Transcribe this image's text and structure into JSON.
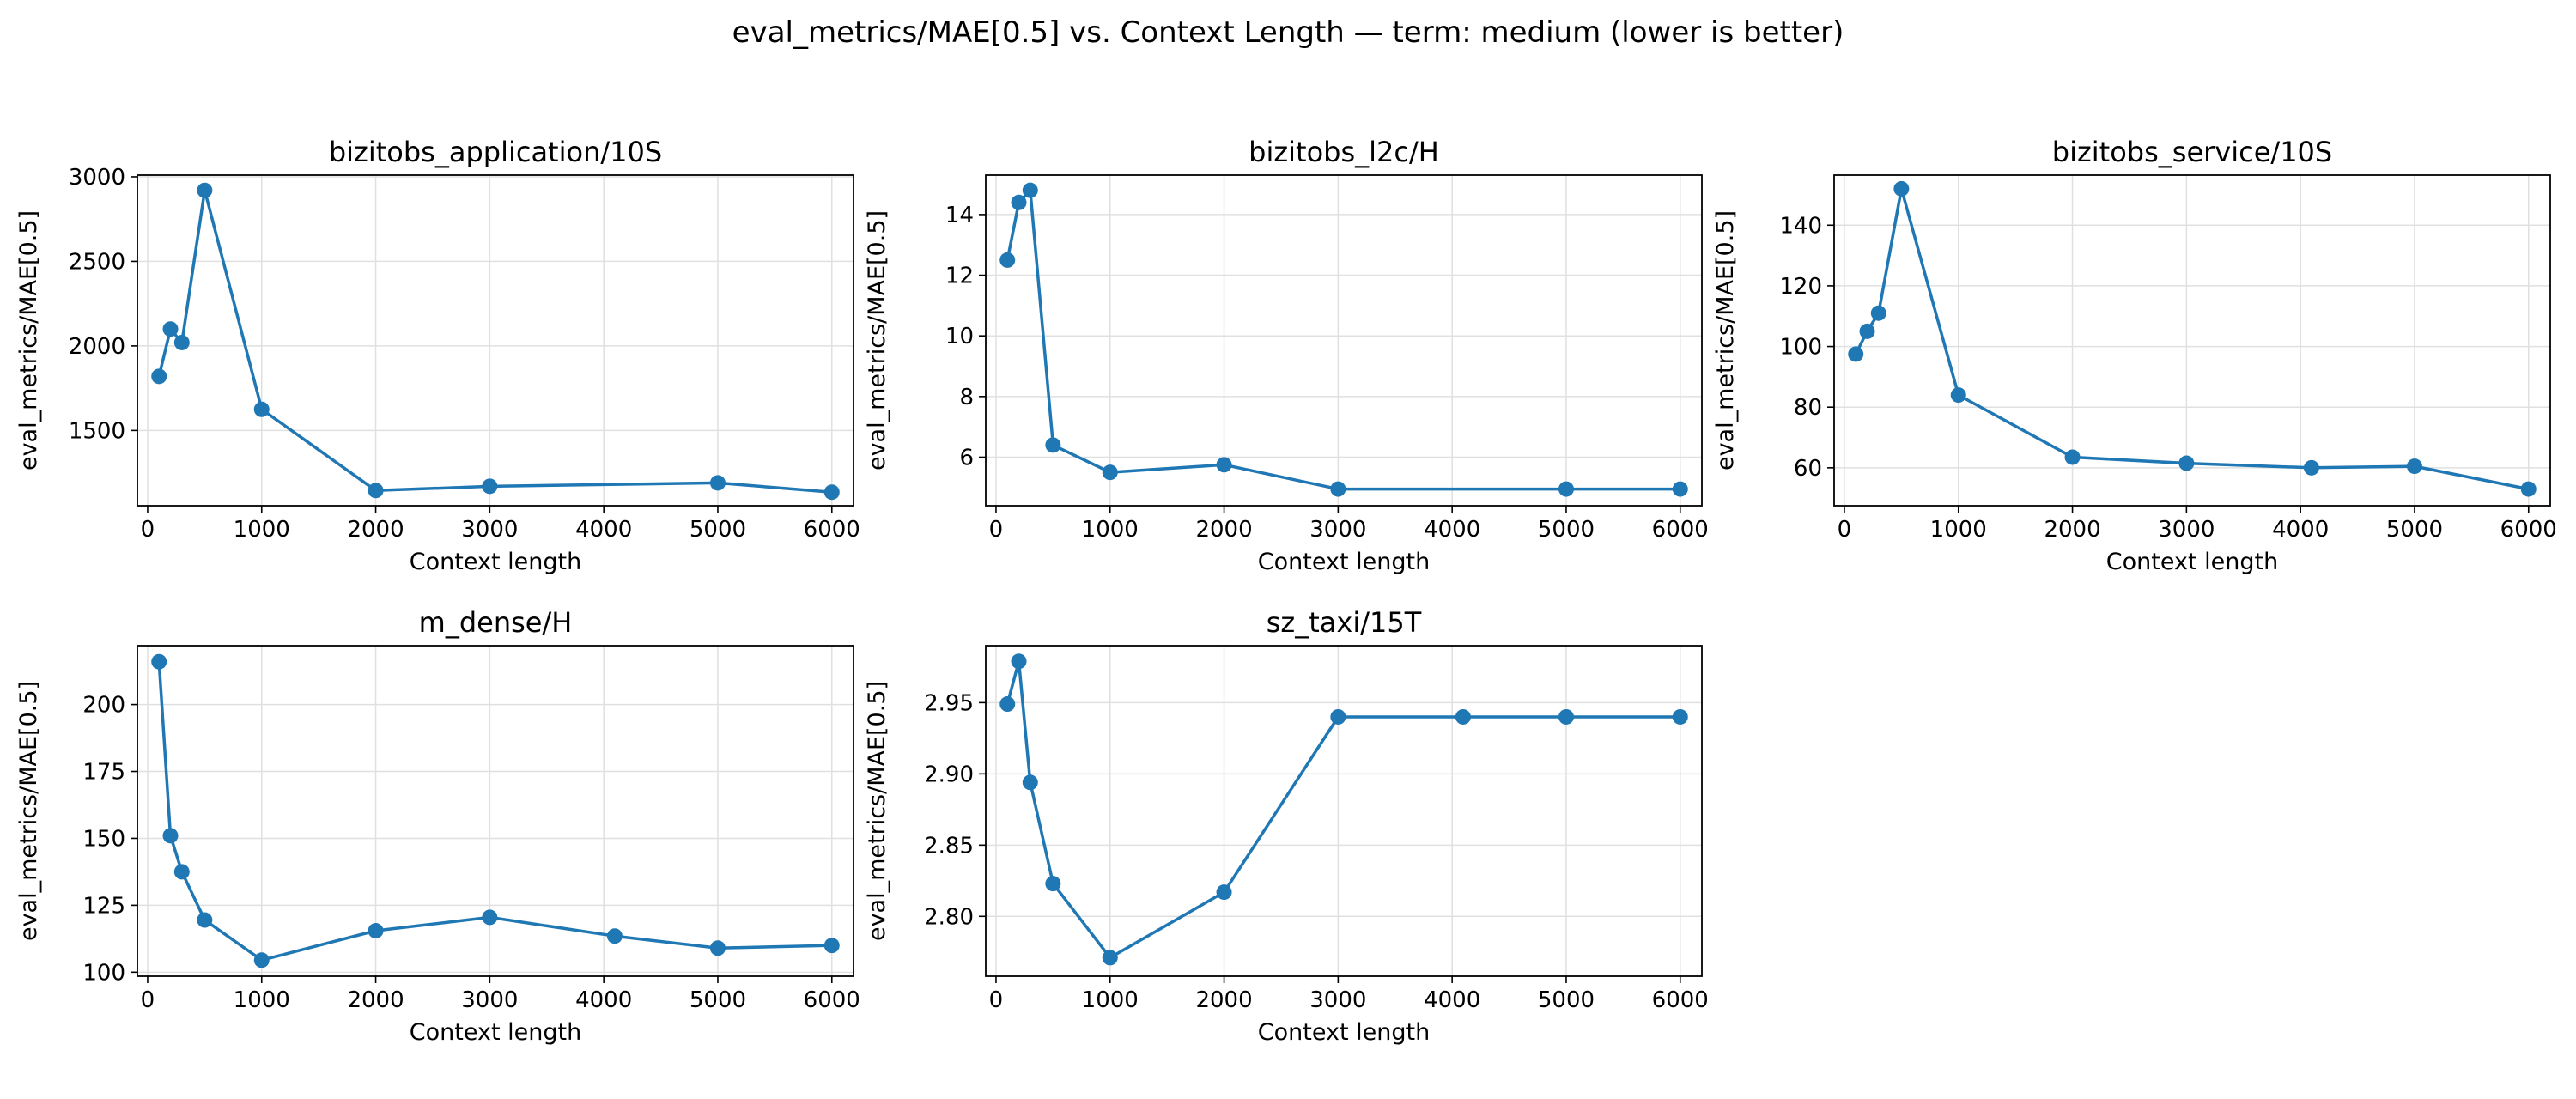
{
  "figure": {
    "suptitle": "eval_metrics/MAE[0.5] vs. Context Length — term: medium (lower is better)"
  },
  "colors": {
    "series": "#1f77b4",
    "grid": "#e0e0e0",
    "axis": "#000000"
  },
  "chart_data": [
    {
      "type": "line",
      "title": "bizitobs_application/10S",
      "xlabel": "Context length",
      "ylabel": "eval_metrics/MAE[0.5]",
      "grid": true,
      "xlim": [
        -90,
        6190
      ],
      "ylim": [
        1055,
        3010
      ],
      "xticks": [
        0,
        1000,
        2000,
        3000,
        4000,
        5000,
        6000
      ],
      "xticklabels": [
        "0",
        "1000",
        "2000",
        "3000",
        "4000",
        "5000",
        "6000"
      ],
      "yticks": [
        1500,
        2000,
        2500,
        3000
      ],
      "yticklabels": [
        "1500",
        "2000",
        "2500",
        "3000"
      ],
      "x": [
        100,
        200,
        300,
        500,
        1000,
        2000,
        3000,
        5000,
        6000
      ],
      "y": [
        1820,
        2100,
        2020,
        2920,
        1625,
        1145,
        1170,
        1190,
        1135
      ]
    },
    {
      "type": "line",
      "title": "bizitobs_l2c/H",
      "xlabel": "Context length",
      "ylabel": "eval_metrics/MAE[0.5]",
      "grid": true,
      "xlim": [
        -90,
        6190
      ],
      "ylim": [
        4.4,
        15.3
      ],
      "xticks": [
        0,
        1000,
        2000,
        3000,
        4000,
        5000,
        6000
      ],
      "xticklabels": [
        "0",
        "1000",
        "2000",
        "3000",
        "4000",
        "5000",
        "6000"
      ],
      "yticks": [
        6,
        8,
        10,
        12,
        14
      ],
      "yticklabels": [
        "6",
        "8",
        "10",
        "12",
        "14"
      ],
      "x": [
        100,
        200,
        300,
        500,
        1000,
        2000,
        3000,
        5000,
        6000
      ],
      "y": [
        12.5,
        14.4,
        14.8,
        6.4,
        5.5,
        5.75,
        4.95,
        4.95,
        4.95
      ]
    },
    {
      "type": "line",
      "title": "bizitobs_service/10S",
      "xlabel": "Context length",
      "ylabel": "eval_metrics/MAE[0.5]",
      "grid": true,
      "xlim": [
        -90,
        6190
      ],
      "ylim": [
        47.5,
        156.5
      ],
      "xticks": [
        0,
        1000,
        2000,
        3000,
        4000,
        5000,
        6000
      ],
      "xticklabels": [
        "0",
        "1000",
        "2000",
        "3000",
        "4000",
        "5000",
        "6000"
      ],
      "yticks": [
        60,
        80,
        100,
        120,
        140
      ],
      "yticklabels": [
        "60",
        "80",
        "100",
        "120",
        "140"
      ],
      "x": [
        100,
        200,
        300,
        500,
        1000,
        2000,
        3000,
        4096,
        5000,
        6000
      ],
      "y": [
        97.5,
        105,
        111,
        152,
        84,
        63.5,
        61.5,
        60,
        60.5,
        53
      ]
    },
    {
      "type": "line",
      "title": "m_dense/H",
      "xlabel": "Context length",
      "ylabel": "eval_metrics/MAE[0.5]",
      "grid": true,
      "xlim": [
        -90,
        6190
      ],
      "ylim": [
        98.5,
        222
      ],
      "xticks": [
        0,
        1000,
        2000,
        3000,
        4000,
        5000,
        6000
      ],
      "xticklabels": [
        "0",
        "1000",
        "2000",
        "3000",
        "4000",
        "5000",
        "6000"
      ],
      "yticks": [
        100,
        125,
        150,
        175,
        200
      ],
      "yticklabels": [
        "100",
        "125",
        "150",
        "175",
        "200"
      ],
      "x": [
        100,
        200,
        300,
        500,
        1000,
        2000,
        3000,
        4096,
        5000,
        6000
      ],
      "y": [
        216,
        151,
        137.5,
        119.5,
        104.5,
        115.5,
        120.5,
        113.5,
        109,
        110
      ]
    },
    {
      "type": "line",
      "title": "sz_taxi/15T",
      "xlabel": "Context length",
      "ylabel": "eval_metrics/MAE[0.5]",
      "grid": true,
      "xlim": [
        -90,
        6190
      ],
      "ylim": [
        2.758,
        2.99
      ],
      "xticks": [
        0,
        1000,
        2000,
        3000,
        4000,
        5000,
        6000
      ],
      "xticklabels": [
        "0",
        "1000",
        "2000",
        "3000",
        "4000",
        "5000",
        "6000"
      ],
      "yticks": [
        2.8,
        2.85,
        2.9,
        2.95
      ],
      "yticklabels": [
        "2.80",
        "2.85",
        "2.90",
        "2.95"
      ],
      "x": [
        100,
        200,
        300,
        500,
        1000,
        2000,
        3000,
        4096,
        5000,
        6000
      ],
      "y": [
        2.949,
        2.979,
        2.894,
        2.823,
        2.771,
        2.817,
        2.94,
        2.94,
        2.94,
        2.94
      ]
    }
  ]
}
